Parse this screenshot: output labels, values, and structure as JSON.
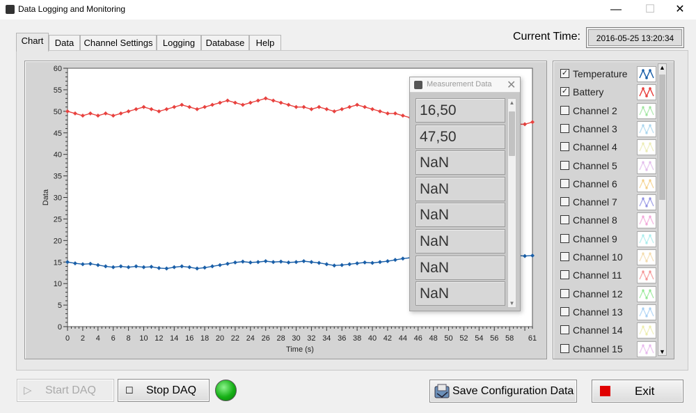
{
  "window": {
    "title": "Data Logging and Monitoring",
    "minimize": "—",
    "maximize": "☐",
    "close": "✕"
  },
  "tabs": [
    "Chart",
    "Data",
    "Channel Settings",
    "Logging",
    "Database",
    "Help"
  ],
  "current_time": {
    "label": "Current Time:",
    "value": "2016-05-25 13:20:34"
  },
  "chart_data": {
    "type": "line",
    "xlabel": "Time (s)",
    "ylabel": "Data",
    "xlim": [
      0,
      61
    ],
    "ylim": [
      0,
      60
    ],
    "x_ticks": [
      0,
      2,
      4,
      6,
      8,
      10,
      12,
      14,
      16,
      18,
      20,
      22,
      24,
      26,
      28,
      30,
      32,
      34,
      36,
      38,
      40,
      42,
      44,
      46,
      48,
      50,
      52,
      54,
      56,
      58,
      61
    ],
    "y_ticks": [
      0,
      5,
      10,
      15,
      20,
      25,
      30,
      35,
      40,
      45,
      50,
      55,
      60
    ],
    "grid": false,
    "series": [
      {
        "name": "Battery",
        "color": "#e8423f",
        "x": [
          0,
          1,
          2,
          3,
          4,
          5,
          6,
          7,
          8,
          9,
          10,
          11,
          12,
          13,
          14,
          15,
          16,
          17,
          18,
          19,
          20,
          21,
          22,
          23,
          24,
          25,
          26,
          27,
          28,
          29,
          30,
          31,
          32,
          33,
          34,
          35,
          36,
          37,
          38,
          39,
          40,
          41,
          42,
          43,
          44,
          45,
          46,
          47,
          48,
          49,
          50,
          51,
          52,
          53,
          54,
          55,
          56,
          57,
          58,
          59,
          60,
          61
        ],
        "values": [
          50,
          49.5,
          49.0,
          49.5,
          49.0,
          49.5,
          49.0,
          49.5,
          50.0,
          50.5,
          51.0,
          50.5,
          50.0,
          50.5,
          51.0,
          51.5,
          51.0,
          50.5,
          51.0,
          51.5,
          52.0,
          52.5,
          52.0,
          51.5,
          52.0,
          52.5,
          53.0,
          52.5,
          52.0,
          51.5,
          51.0,
          51.0,
          50.5,
          51.0,
          50.5,
          50.0,
          50.5,
          51.0,
          51.5,
          51.0,
          50.5,
          50.0,
          49.5,
          49.5,
          49.0,
          48.5,
          48.5,
          49.0,
          48.5,
          49.0,
          48.5,
          48.0,
          48.0,
          47.5,
          47.5,
          47.0,
          47.0,
          46.5,
          46.5,
          47.0,
          47.0,
          47.5
        ]
      },
      {
        "name": "Temperature",
        "color": "#1a5fa8",
        "x": [
          0,
          1,
          2,
          3,
          4,
          5,
          6,
          7,
          8,
          9,
          10,
          11,
          12,
          13,
          14,
          15,
          16,
          17,
          18,
          19,
          20,
          21,
          22,
          23,
          24,
          25,
          26,
          27,
          28,
          29,
          30,
          31,
          32,
          33,
          34,
          35,
          36,
          37,
          38,
          39,
          40,
          41,
          42,
          43,
          44,
          45,
          46,
          47,
          48,
          49,
          50,
          51,
          52,
          53,
          54,
          55,
          56,
          57,
          58,
          59,
          60,
          61
        ],
        "values": [
          15.0,
          14.7,
          14.5,
          14.6,
          14.3,
          14.0,
          13.8,
          14.0,
          13.8,
          14.0,
          13.8,
          13.9,
          13.6,
          13.5,
          13.8,
          14.0,
          13.8,
          13.5,
          13.7,
          14.0,
          14.3,
          14.6,
          14.9,
          15.1,
          14.9,
          15.0,
          15.2,
          15.0,
          15.1,
          14.9,
          15.0,
          15.2,
          15.0,
          14.8,
          14.5,
          14.2,
          14.3,
          14.5,
          14.7,
          14.9,
          14.8,
          15.0,
          15.2,
          15.5,
          15.8,
          16.0,
          16.2,
          16.5,
          16.5,
          16.8,
          17.0,
          17.2,
          17.4,
          17.0,
          16.8,
          16.5,
          16.5,
          16.3,
          16.5,
          16.5,
          16.4,
          16.5
        ]
      }
    ]
  },
  "measurement_window": {
    "title": "Measurement Data",
    "close": "✕",
    "values": [
      "16,50",
      "47,50",
      "NaN",
      "NaN",
      "NaN",
      "NaN",
      "NaN",
      "NaN"
    ],
    "scroll_up": "▲",
    "scroll_down": "▼"
  },
  "channels": [
    {
      "label": "Temperature",
      "checked": true,
      "color": "#1a5fa8"
    },
    {
      "label": "Battery",
      "checked": true,
      "color": "#e8423f"
    },
    {
      "label": "Channel 2",
      "checked": false,
      "color": "#7ddc7d"
    },
    {
      "label": "Channel 3",
      "checked": false,
      "color": "#8cc8ea"
    },
    {
      "label": "Channel 4",
      "checked": false,
      "color": "#e6e69a"
    },
    {
      "label": "Channel 5",
      "checked": false,
      "color": "#d9a6e6"
    },
    {
      "label": "Channel 6",
      "checked": false,
      "color": "#f0c060"
    },
    {
      "label": "Channel 7",
      "checked": false,
      "color": "#6a6ad9"
    },
    {
      "label": "Channel 8",
      "checked": false,
      "color": "#ee88cc"
    },
    {
      "label": "Channel 9",
      "checked": false,
      "color": "#8ee8e8"
    },
    {
      "label": "Channel 10",
      "checked": false,
      "color": "#f0d090"
    },
    {
      "label": "Channel 11",
      "checked": false,
      "color": "#f07070"
    },
    {
      "label": "Channel 12",
      "checked": false,
      "color": "#70e070"
    },
    {
      "label": "Channel 13",
      "checked": false,
      "color": "#88c0f0"
    },
    {
      "label": "Channel 14",
      "checked": false,
      "color": "#e8e890"
    },
    {
      "label": "Channel 15",
      "checked": false,
      "color": "#e0a0e8"
    }
  ],
  "channel_scroll": {
    "up": "▲",
    "down": "▼"
  },
  "buttons": {
    "start": {
      "label": "Start DAQ",
      "icon": "▷"
    },
    "stop": {
      "label": "Stop DAQ",
      "icon": "☐"
    },
    "save": {
      "label": "Save Configuration Data"
    },
    "exit": {
      "label": "Exit"
    }
  },
  "daq_status": {
    "color": "#16b016"
  }
}
